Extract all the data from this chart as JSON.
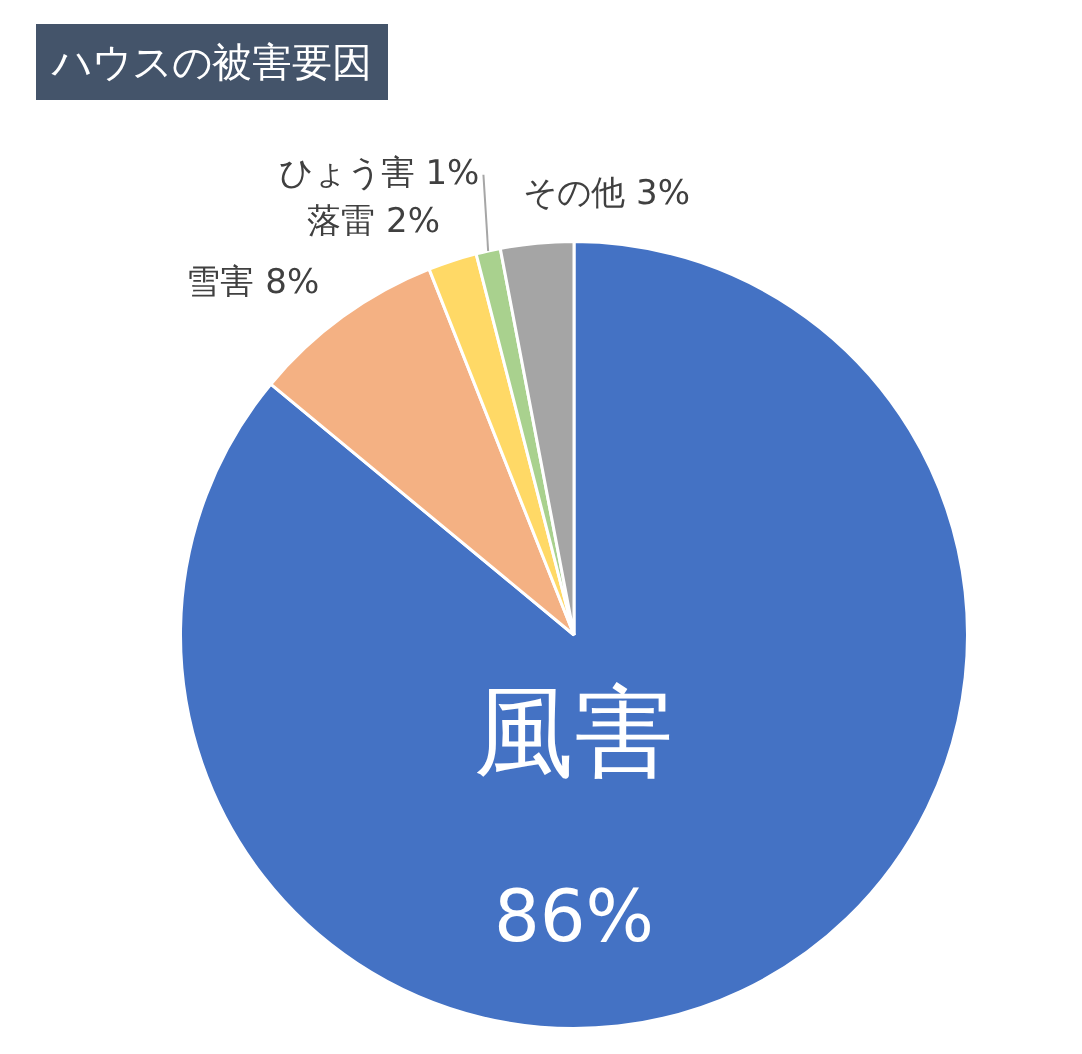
{
  "chart_data": {
    "type": "pie",
    "title": "ハウスの被害要因",
    "categories": [
      "風害",
      "雪害",
      "落雷",
      "ひょう害",
      "その他"
    ],
    "values": [
      86,
      8,
      2,
      1,
      3
    ],
    "colors": [
      "#4472c4",
      "#f4b183",
      "#ffd966",
      "#a9d18e",
      "#a5a5a5"
    ],
    "value_labels": [
      "86%",
      "8%",
      "2%",
      "1%",
      "3%"
    ],
    "legend": false
  }
}
